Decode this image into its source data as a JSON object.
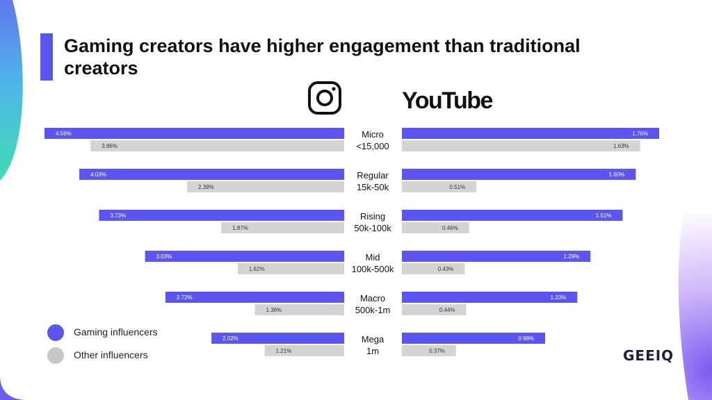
{
  "title": "Gaming creators have higher engagement than traditional creators",
  "platforms": {
    "left": "instagram-icon",
    "right": "YouTube"
  },
  "legend": [
    {
      "label": "Gaming influencers",
      "color": "#5c55f2"
    },
    {
      "label": "Other influencers",
      "color": "#c8c8c8"
    }
  ],
  "brand": "GEEIQ",
  "colors": {
    "gaming": "#5c55f2",
    "other": "#d4d4d4",
    "gaming_text": "#ffffff",
    "other_text": "#333333"
  },
  "chart_data": {
    "type": "bar",
    "layout": "butterfly",
    "categories": [
      {
        "name": "Micro",
        "range": "<15,000"
      },
      {
        "name": "Regular",
        "range": "15k-50k"
      },
      {
        "name": "Rising",
        "range": "50k-100k"
      },
      {
        "name": "Mid",
        "range": "100k-500k"
      },
      {
        "name": "Macro",
        "range": "500k-1m"
      },
      {
        "name": "Mega",
        "range": "1m"
      }
    ],
    "instagram": {
      "gaming": [
        4.56,
        4.03,
        3.73,
        3.03,
        2.72,
        2.02
      ],
      "other": [
        3.86,
        2.39,
        1.87,
        1.62,
        1.36,
        1.21
      ]
    },
    "youtube": {
      "gaming": [
        1.76,
        1.6,
        1.51,
        1.29,
        1.2,
        0.98
      ],
      "other": [
        1.63,
        0.51,
        0.46,
        0.43,
        0.44,
        0.37
      ]
    },
    "labels": {
      "instagram": {
        "gaming": [
          "4.56%",
          "4.03%",
          "3.73%",
          "3.03%",
          "2.72%",
          "2.02%"
        ],
        "other": [
          "3.86%",
          "2.39%",
          "1.87%",
          "1.62%",
          "1.36%",
          "1.21%"
        ]
      },
      "youtube": {
        "gaming": [
          "1.76%",
          "1.60%",
          "1.51%",
          "1.29%",
          "1.20%",
          "0.98%"
        ],
        "other": [
          "1.63%",
          "0.51%",
          "0.46%",
          "0.43%",
          "0.44%",
          "0.37%"
        ]
      }
    }
  }
}
